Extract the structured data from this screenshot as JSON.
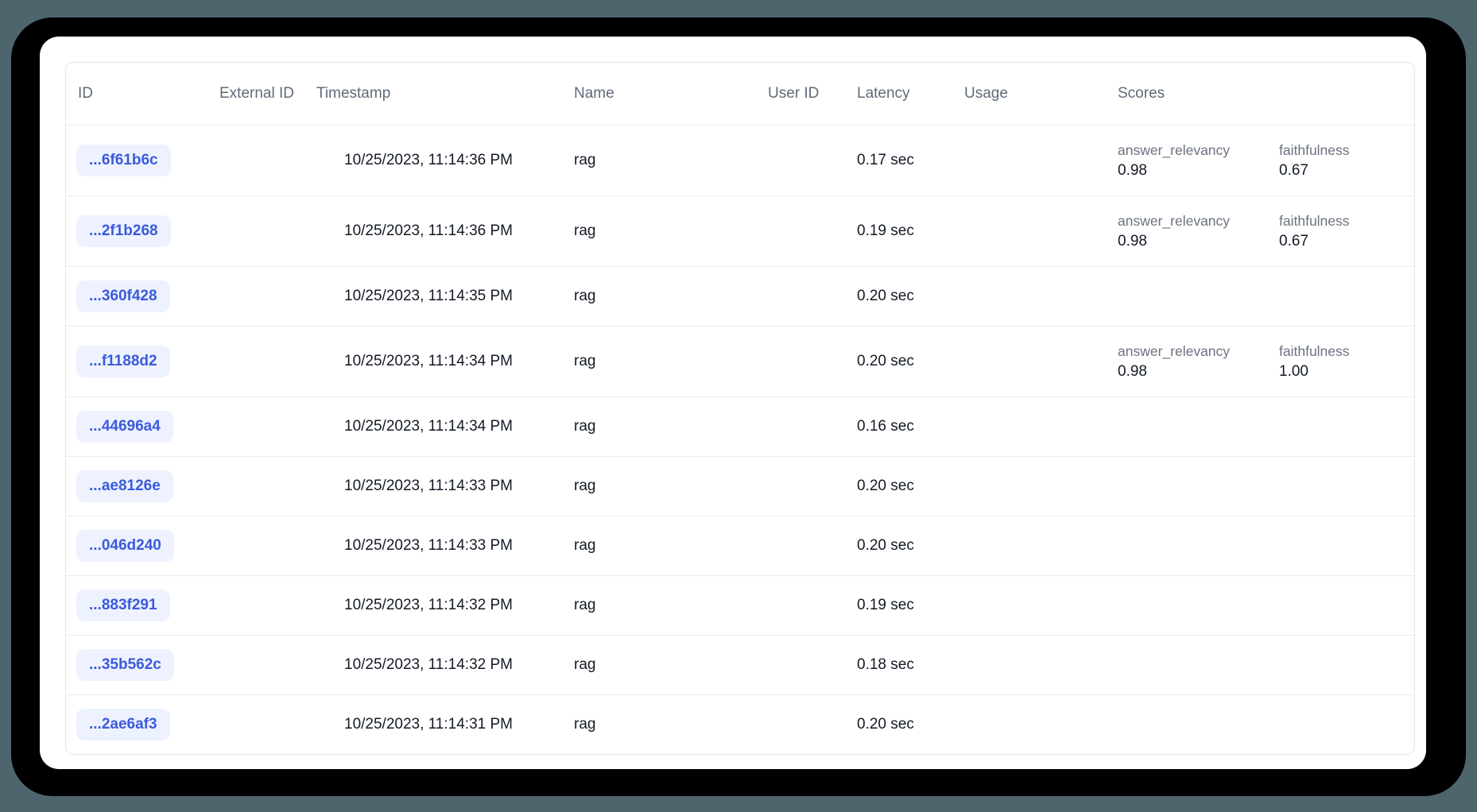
{
  "colors": {
    "page_background": "#4e656e",
    "frame": "#000000",
    "card": "#ffffff",
    "id_badge_bg": "#eef2ff",
    "id_badge_text": "#3b5bdb",
    "header_text": "#5f6b7a",
    "body_text": "#131a26",
    "score_label_text": "#6b7280",
    "divider": "#e7ebf0"
  },
  "header": {
    "id": "ID",
    "external_id": "External ID",
    "timestamp": "Timestamp",
    "name": "Name",
    "user_id": "User ID",
    "latency": "Latency",
    "usage": "Usage",
    "scores": "Scores"
  },
  "rows": [
    {
      "id": "...6f61b6c",
      "external_id": "",
      "timestamp": "10/25/2023, 11:14:36 PM",
      "name": "rag",
      "user_id": "",
      "latency": "0.17 sec",
      "usage": "",
      "scores": [
        {
          "label": "answer_relevancy",
          "value": "0.98"
        },
        {
          "label": "faithfulness",
          "value": "0.67"
        }
      ]
    },
    {
      "id": "...2f1b268",
      "external_id": "",
      "timestamp": "10/25/2023, 11:14:36 PM",
      "name": "rag",
      "user_id": "",
      "latency": "0.19 sec",
      "usage": "",
      "scores": [
        {
          "label": "answer_relevancy",
          "value": "0.98"
        },
        {
          "label": "faithfulness",
          "value": "0.67"
        }
      ]
    },
    {
      "id": "...360f428",
      "external_id": "",
      "timestamp": "10/25/2023, 11:14:35 PM",
      "name": "rag",
      "user_id": "",
      "latency": "0.20 sec",
      "usage": "",
      "scores": []
    },
    {
      "id": "...f1188d2",
      "external_id": "",
      "timestamp": "10/25/2023, 11:14:34 PM",
      "name": "rag",
      "user_id": "",
      "latency": "0.20 sec",
      "usage": "",
      "scores": [
        {
          "label": "answer_relevancy",
          "value": "0.98"
        },
        {
          "label": "faithfulness",
          "value": "1.00"
        }
      ]
    },
    {
      "id": "...44696a4",
      "external_id": "",
      "timestamp": "10/25/2023, 11:14:34 PM",
      "name": "rag",
      "user_id": "",
      "latency": "0.16 sec",
      "usage": "",
      "scores": []
    },
    {
      "id": "...ae8126e",
      "external_id": "",
      "timestamp": "10/25/2023, 11:14:33 PM",
      "name": "rag",
      "user_id": "",
      "latency": "0.20 sec",
      "usage": "",
      "scores": []
    },
    {
      "id": "...046d240",
      "external_id": "",
      "timestamp": "10/25/2023, 11:14:33 PM",
      "name": "rag",
      "user_id": "",
      "latency": "0.20 sec",
      "usage": "",
      "scores": []
    },
    {
      "id": "...883f291",
      "external_id": "",
      "timestamp": "10/25/2023, 11:14:32 PM",
      "name": "rag",
      "user_id": "",
      "latency": "0.19 sec",
      "usage": "",
      "scores": []
    },
    {
      "id": "...35b562c",
      "external_id": "",
      "timestamp": "10/25/2023, 11:14:32 PM",
      "name": "rag",
      "user_id": "",
      "latency": "0.18 sec",
      "usage": "",
      "scores": []
    },
    {
      "id": "...2ae6af3",
      "external_id": "",
      "timestamp": "10/25/2023, 11:14:31 PM",
      "name": "rag",
      "user_id": "",
      "latency": "0.20 sec",
      "usage": "",
      "scores": []
    }
  ]
}
